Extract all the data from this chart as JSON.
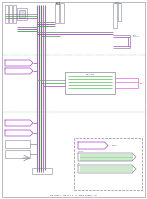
{
  "bg_color": "#ffffff",
  "lc_gray": "#888899",
  "lc_green": "#33aa33",
  "lc_purple": "#aa44cc",
  "lc_pink": "#dd66dd",
  "lc_dark": "#444466",
  "lc_black": "#222233",
  "footer": "Fig Group 1, 28G-01-1 a, All Board Formats, 1st"
}
